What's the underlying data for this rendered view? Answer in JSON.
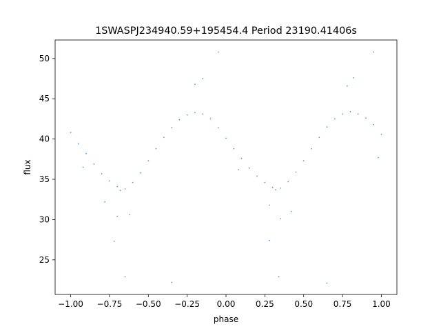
{
  "chart_data": {
    "type": "scatter",
    "title": "1SWASPJ234940.59+195454.4 Period 23190.41406s",
    "xlabel": "phase",
    "ylabel": "flux",
    "xlim": [
      -1.1,
      1.1
    ],
    "ylim": [
      20.7,
      52.3
    ],
    "x_ticks": [
      -1.0,
      -0.75,
      -0.5,
      -0.25,
      0.0,
      0.25,
      0.5,
      0.75,
      1.0
    ],
    "x_tick_labels": [
      "−1.00",
      "−0.75",
      "−0.50",
      "−0.25",
      "0.00",
      "0.25",
      "0.50",
      "0.75",
      "1.00"
    ],
    "y_ticks": [
      25,
      30,
      35,
      40,
      45,
      50
    ],
    "y_tick_labels": [
      "25",
      "30",
      "35",
      "40",
      "45",
      "50"
    ],
    "grid": false,
    "marker_color": "#1f77b4",
    "series": [
      {
        "points": [
          [
            -1.0,
            40.8
          ],
          [
            -0.95,
            39.4
          ],
          [
            -0.9,
            38.2
          ],
          [
            -0.85,
            36.9
          ],
          [
            -0.8,
            35.7
          ],
          [
            -0.75,
            34.8
          ],
          [
            -0.7,
            34.1
          ],
          [
            -0.68,
            33.6
          ],
          [
            -0.65,
            33.8
          ],
          [
            -0.6,
            34.6
          ],
          [
            -0.55,
            35.8
          ],
          [
            -0.5,
            37.3
          ],
          [
            -0.45,
            38.8
          ],
          [
            -0.4,
            40.2
          ],
          [
            -0.35,
            41.4
          ],
          [
            -0.3,
            42.4
          ],
          [
            -0.25,
            43.0
          ],
          [
            -0.2,
            43.3
          ],
          [
            -0.15,
            43.1
          ],
          [
            -0.1,
            42.5
          ],
          [
            -0.05,
            41.4
          ],
          [
            0.0,
            40.1
          ],
          [
            0.05,
            38.8
          ],
          [
            0.1,
            37.6
          ],
          [
            0.15,
            36.4
          ],
          [
            0.2,
            35.4
          ],
          [
            0.25,
            34.6
          ],
          [
            0.3,
            34.0
          ],
          [
            0.32,
            33.7
          ],
          [
            0.35,
            33.9
          ],
          [
            0.4,
            34.7
          ],
          [
            0.45,
            35.9
          ],
          [
            0.5,
            37.3
          ],
          [
            0.55,
            38.8
          ],
          [
            0.6,
            40.2
          ],
          [
            0.65,
            41.5
          ],
          [
            0.7,
            42.5
          ],
          [
            0.75,
            43.1
          ],
          [
            0.8,
            43.4
          ],
          [
            0.85,
            43.1
          ],
          [
            0.9,
            42.6
          ],
          [
            0.95,
            41.8
          ],
          [
            1.0,
            40.6
          ],
          [
            -0.92,
            36.5
          ],
          [
            -0.78,
            32.2
          ],
          [
            -0.7,
            30.4
          ],
          [
            -0.62,
            30.6
          ],
          [
            -0.2,
            46.8
          ],
          [
            -0.15,
            47.5
          ],
          [
            0.08,
            36.2
          ],
          [
            0.28,
            31.8
          ],
          [
            0.35,
            30.1
          ],
          [
            0.42,
            31.0
          ],
          [
            0.78,
            46.6
          ],
          [
            0.82,
            47.6
          ],
          [
            0.98,
            37.7
          ],
          [
            -0.72,
            27.3
          ],
          [
            0.28,
            27.4
          ],
          [
            -0.05,
            50.8
          ],
          [
            0.95,
            50.8
          ],
          [
            -0.35,
            22.2
          ],
          [
            0.65,
            22.1
          ],
          [
            -0.65,
            22.9
          ],
          [
            0.34,
            22.9
          ]
        ]
      }
    ]
  }
}
